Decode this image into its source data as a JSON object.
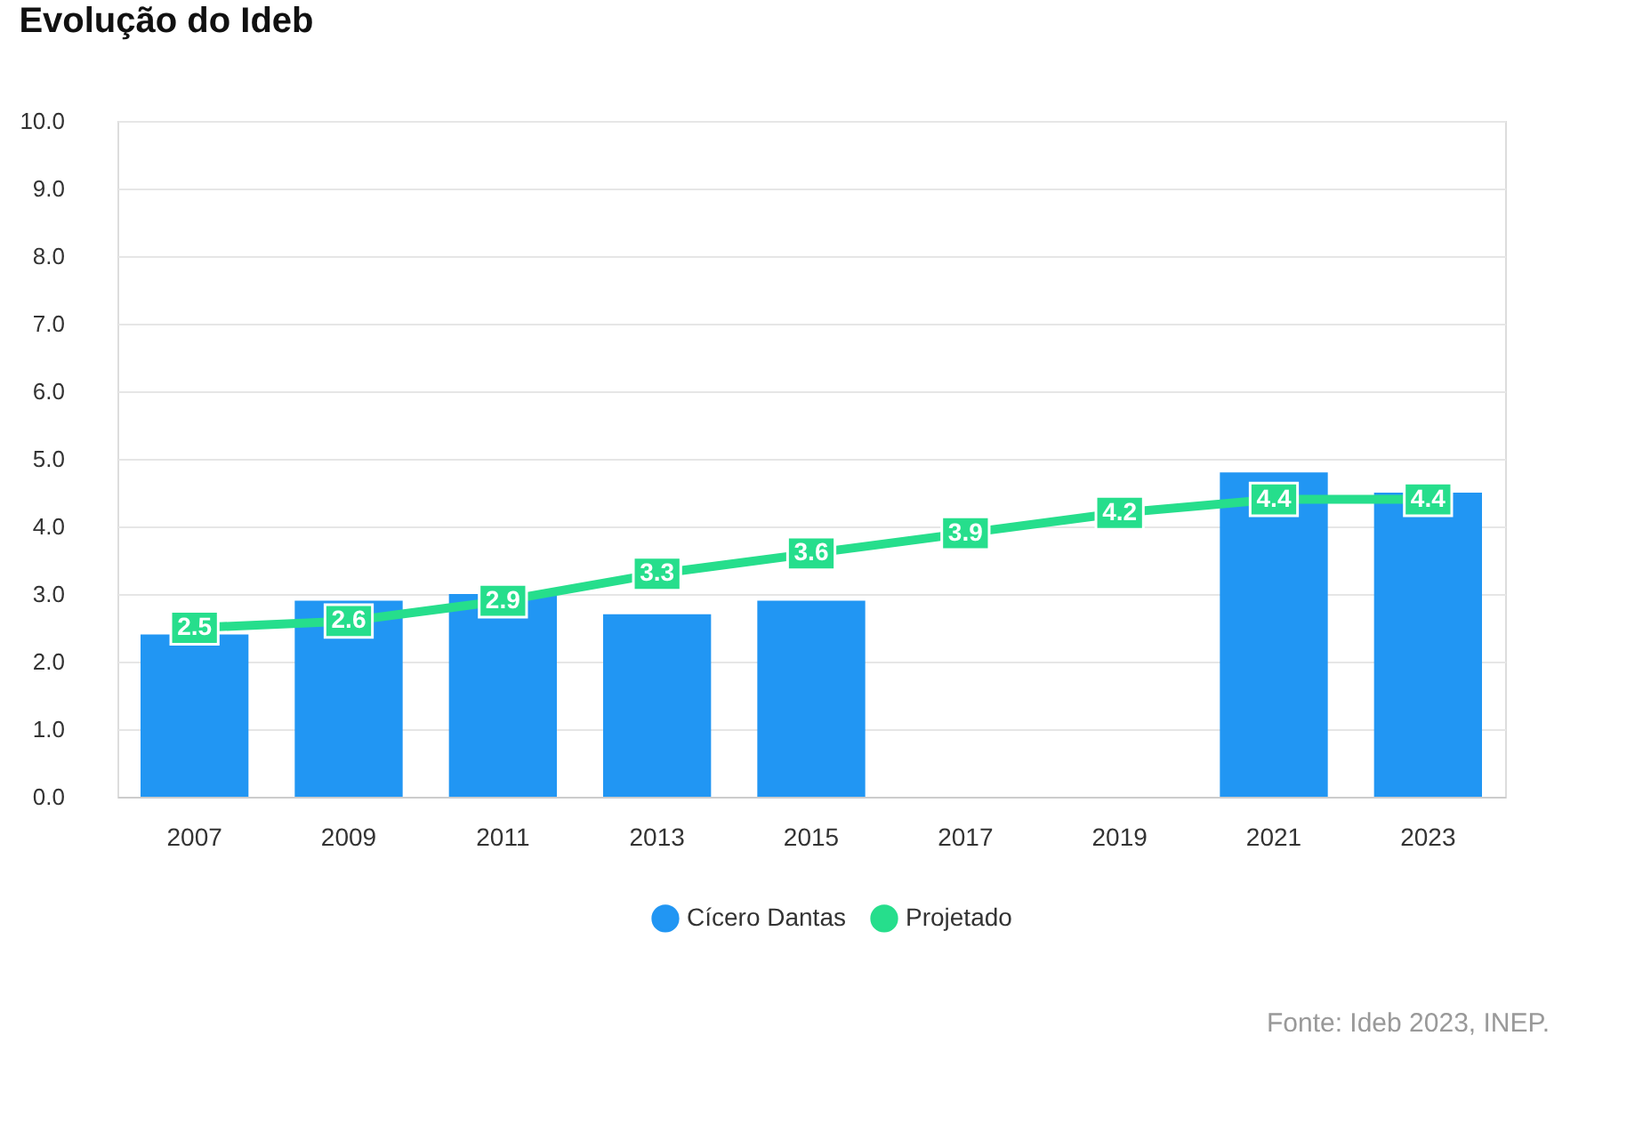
{
  "chart_data": {
    "type": "bar",
    "title": "Evolução do Ideb",
    "categories": [
      "2007",
      "2009",
      "2011",
      "2013",
      "2015",
      "2017",
      "2019",
      "2021",
      "2023"
    ],
    "series": [
      {
        "name": "Cícero Dantas",
        "color": "#2196f3",
        "values": [
          2.4,
          2.9,
          3.0,
          2.7,
          2.9,
          null,
          null,
          4.8,
          4.5
        ]
      },
      {
        "name": "Projetado",
        "type": "line",
        "color": "#26de8c",
        "marker": "square",
        "values": [
          2.5,
          2.6,
          2.9,
          3.3,
          3.6,
          3.9,
          4.2,
          4.4,
          4.4
        ],
        "value_labels": [
          "2.5",
          "2.6",
          "2.9",
          "3.3",
          "3.6",
          "3.9",
          "4.2",
          "4.4",
          "4.4"
        ]
      }
    ],
    "ylim": [
      0,
      10
    ],
    "yticks": [
      {
        "value": 0,
        "label": "0.0"
      },
      {
        "value": 1,
        "label": "1.0"
      },
      {
        "value": 2,
        "label": "2.0"
      },
      {
        "value": 3,
        "label": "3.0"
      },
      {
        "value": 4,
        "label": "4.0"
      },
      {
        "value": 5,
        "label": "5.0"
      },
      {
        "value": 6,
        "label": "6.0"
      },
      {
        "value": 7,
        "label": "7.0"
      },
      {
        "value": 8,
        "label": "8.0"
      },
      {
        "value": 9,
        "label": "9.0"
      },
      {
        "value": 10,
        "label": "10.0"
      }
    ],
    "grid": "y",
    "legend": "bottom",
    "annotations": [
      "Fonte: Ideb 2023, INEP."
    ]
  }
}
